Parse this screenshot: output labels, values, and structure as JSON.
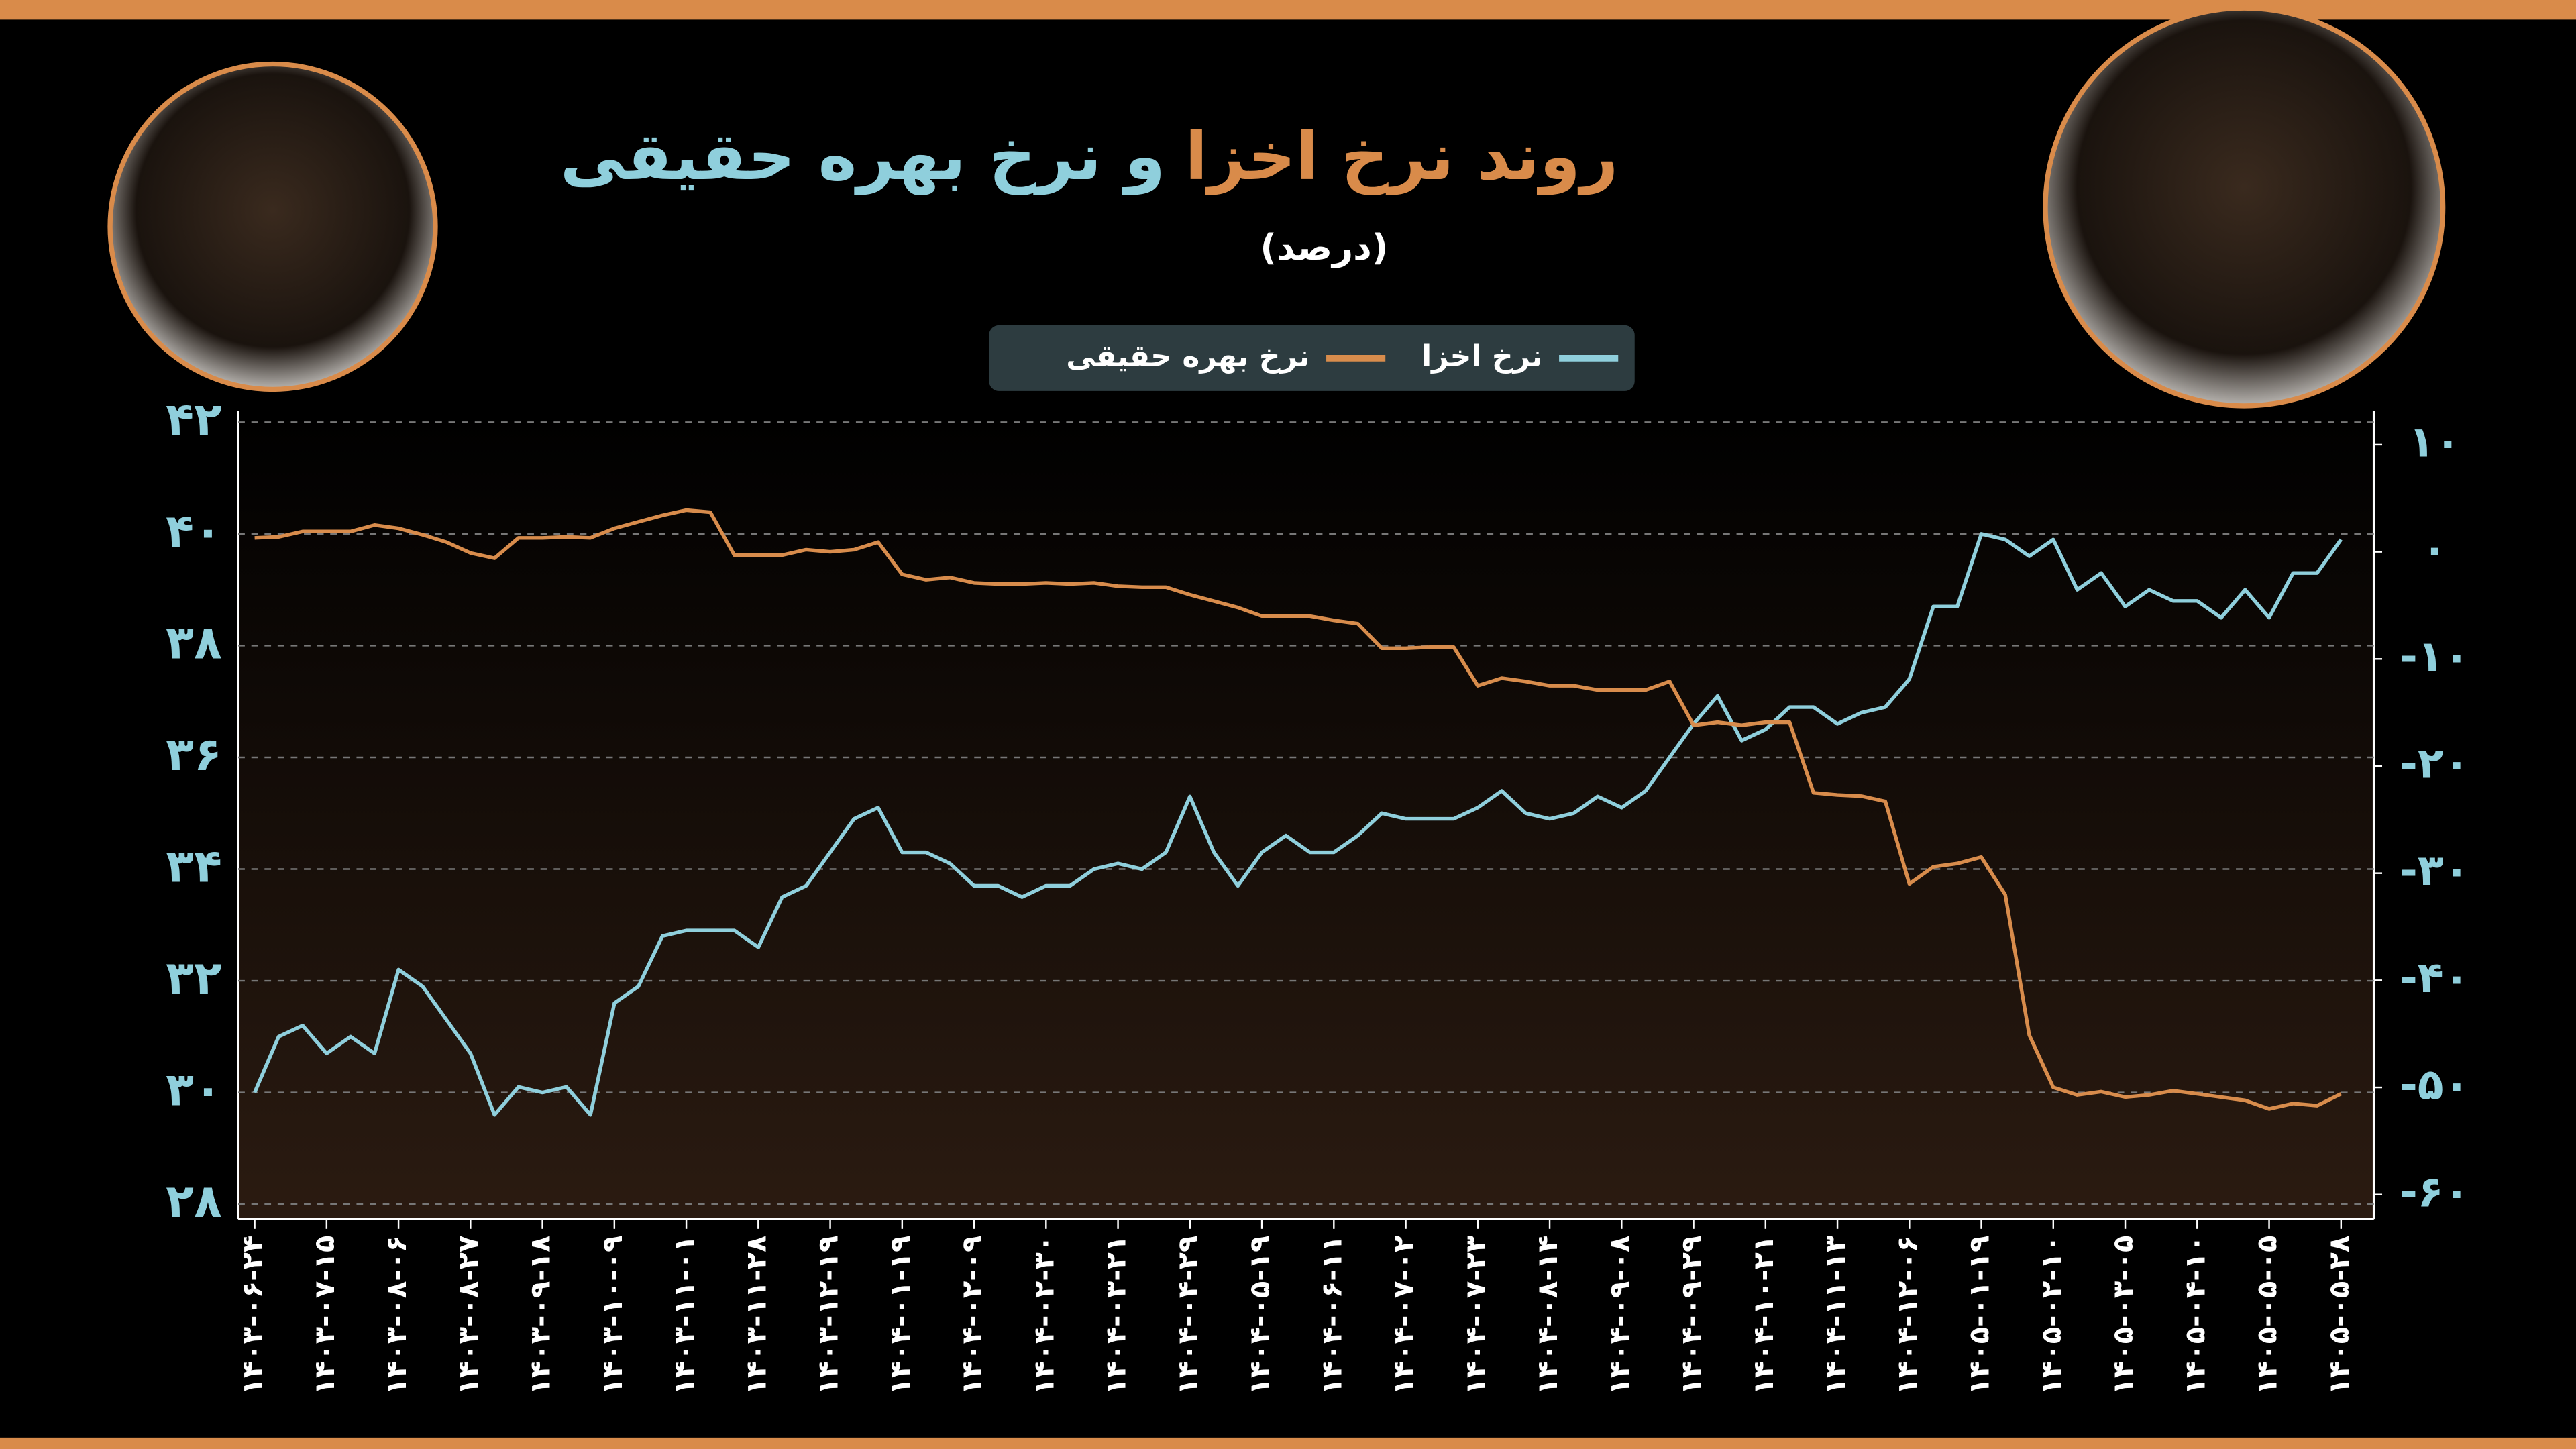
{
  "chart_data": {
    "type": "line",
    "title_parts": [
      "روند نرخ اخزا",
      "و نرخ بهره حقیقی"
    ],
    "subtitle": "(درصد)",
    "categories": [
      "۱۴۰۳-۰۶-۲۴",
      null,
      null,
      "۱۴۰۳-۰۷-۱۵",
      null,
      null,
      "۱۴۰۳-۰۸-۰۶",
      null,
      null,
      "۱۴۰۳-۰۸-۲۷",
      null,
      null,
      "۱۴۰۳-۰۹-۱۸",
      null,
      null,
      "۱۴۰۳-۱۰-۰۹",
      null,
      null,
      "۱۴۰۳-۱۱-۰۱",
      null,
      null,
      "۱۴۰۳-۱۱-۲۸",
      null,
      null,
      "۱۴۰۳-۱۲-۱۹",
      null,
      null,
      "۱۴۰۴-۰۱-۱۹",
      null,
      null,
      "۱۴۰۴-۰۲-۰۹",
      null,
      null,
      "۱۴۰۴-۰۲-۳۰",
      null,
      null,
      "۱۴۰۴-۰۳-۲۱",
      null,
      null,
      "۱۴۰۴-۰۴-۲۹",
      null,
      null,
      "۱۴۰۴-۰۵-۱۹",
      null,
      null,
      "۱۴۰۴-۰۶-۱۱",
      null,
      null,
      "۱۴۰۴-۰۷-۰۲",
      null,
      null,
      "۱۴۰۴-۰۷-۲۳",
      null,
      null,
      "۱۴۰۴-۰۸-۱۴",
      null,
      null,
      "۱۴۰۴-۰۹-۰۸",
      null,
      null,
      "۱۴۰۴-۰۹-۲۹",
      null,
      null,
      "۱۴۰۴-۱۰-۲۱",
      null,
      null,
      "۱۴۰۴-۱۱-۱۳",
      null,
      null,
      "۱۴۰۴-۱۲-۰۶",
      null,
      null,
      "۱۴۰۵-۰۱-۱۹",
      null,
      null,
      "۱۴۰۵-۰۲-۱۰",
      null,
      null,
      "۱۴۰۵-۰۳-۰۵",
      null,
      null,
      "۱۴۰۵-۰۴-۱۰",
      null,
      null,
      "۱۴۰۵-۰۵-۰۵",
      null,
      null,
      "۱۴۰۵-۰۵-۲۸"
    ],
    "series": [
      {
        "name": "نرخ اخزا",
        "color": "#8fcfdc",
        "values": [
          30.0,
          31.0,
          31.2,
          30.7,
          31.0,
          30.7,
          32.2,
          31.9,
          31.3,
          30.7,
          29.6,
          30.1,
          30.0,
          30.1,
          29.6,
          31.6,
          31.9,
          32.8,
          32.9,
          32.9,
          32.9,
          32.6,
          33.5,
          33.7,
          34.3,
          34.9,
          35.1,
          34.3,
          34.3,
          34.1,
          33.7,
          33.7,
          33.5,
          33.7,
          33.7,
          34.0,
          34.1,
          34.0,
          34.3,
          35.3,
          34.3,
          33.7,
          34.3,
          34.6,
          34.3,
          34.3,
          34.6,
          35.0,
          34.9,
          34.9,
          34.9,
          35.1,
          35.4,
          35.0,
          34.9,
          35.0,
          35.3,
          35.1,
          35.4,
          36.0,
          36.6,
          37.1,
          36.3,
          36.5,
          36.9,
          36.9,
          36.6,
          36.8,
          36.9,
          37.4,
          38.7,
          38.7,
          40.0,
          39.9,
          39.6,
          39.9,
          39.0,
          39.3,
          38.7,
          39.0,
          38.8,
          38.8,
          38.5,
          39.0,
          38.5,
          39.3,
          39.3,
          39.9
        ]
      },
      {
        "name": "نرخ بهره حقیقی",
        "color": "#d88c4c",
        "axis": "y2",
        "values": [
          1.3,
          1.4,
          1.9,
          1.9,
          1.9,
          2.5,
          2.2,
          1.6,
          0.9,
          -0.1,
          -0.6,
          1.3,
          1.3,
          1.4,
          1.3,
          2.2,
          2.8,
          3.4,
          3.9,
          3.7,
          -0.3,
          -0.3,
          -0.3,
          0.2,
          0.0,
          0.2,
          0.9,
          -2.1,
          -2.6,
          -2.4,
          -2.9,
          -3.0,
          -3.0,
          -2.9,
          -3.0,
          -2.9,
          -3.2,
          -3.3,
          -3.3,
          -4.0,
          -4.6,
          -5.2,
          -6.0,
          -6.0,
          -6.0,
          -6.4,
          -6.7,
          -9.0,
          -9.0,
          -8.9,
          -8.9,
          -12.5,
          -11.8,
          -12.1,
          -12.5,
          -12.5,
          -12.9,
          -12.9,
          -12.9,
          -12.1,
          -16.2,
          -15.9,
          -16.2,
          -15.9,
          -15.9,
          -22.5,
          -22.7,
          -22.8,
          -23.3,
          -31.0,
          -29.4,
          -29.1,
          -28.5,
          -32.0,
          -45.1,
          -50.0,
          -50.7,
          -50.4,
          -50.9,
          -50.7,
          -50.3,
          -50.6,
          -50.9,
          -51.2,
          -52.0,
          -51.5,
          -51.7,
          -50.6
        ]
      }
    ],
    "ylim": [
      28,
      42
    ],
    "yticks": [
      {
        "value": 28,
        "label": "۲۸"
      },
      {
        "value": 30,
        "label": "۳۰"
      },
      {
        "value": 32,
        "label": "۳۲"
      },
      {
        "value": 34,
        "label": "۳۴"
      },
      {
        "value": 36,
        "label": "۳۶"
      },
      {
        "value": 38,
        "label": "۳۸"
      },
      {
        "value": 40,
        "label": "۴۰"
      },
      {
        "value": 42,
        "label": "۴۲"
      }
    ],
    "y2lim": [
      -60.9,
      12.1
    ],
    "y2ticks": [
      {
        "value": 10,
        "label": "۱۰"
      },
      {
        "value": 0,
        "label": "۰"
      },
      {
        "value": -10,
        "label": "-۱۰"
      },
      {
        "value": -20,
        "label": "-۲۰"
      },
      {
        "value": -30,
        "label": "-۳۰"
      },
      {
        "value": -40,
        "label": "-۴۰"
      },
      {
        "value": -50,
        "label": "-۵۰"
      },
      {
        "value": -60,
        "label": "-۶۰"
      }
    ],
    "grid": true,
    "legend": "top"
  }
}
